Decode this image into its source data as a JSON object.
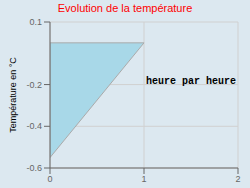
{
  "chart_data": {
    "type": "area",
    "title": "Evolution de la température",
    "ylabel": "Température en °C",
    "x": [
      0,
      0,
      1,
      0
    ],
    "values": [
      0,
      -0.55,
      0,
      0
    ],
    "color": "#a8d8e8",
    "xlim": [
      0,
      2
    ],
    "ylim": [
      -0.6,
      0.1
    ],
    "xticks": [
      0,
      1,
      2
    ],
    "yticks": [
      0.1,
      -0.2,
      -0.4,
      -0.6
    ],
    "grid": true,
    "annotations": [
      {
        "text": "heure par heure",
        "x": 1.5,
        "y": -0.18
      }
    ]
  }
}
